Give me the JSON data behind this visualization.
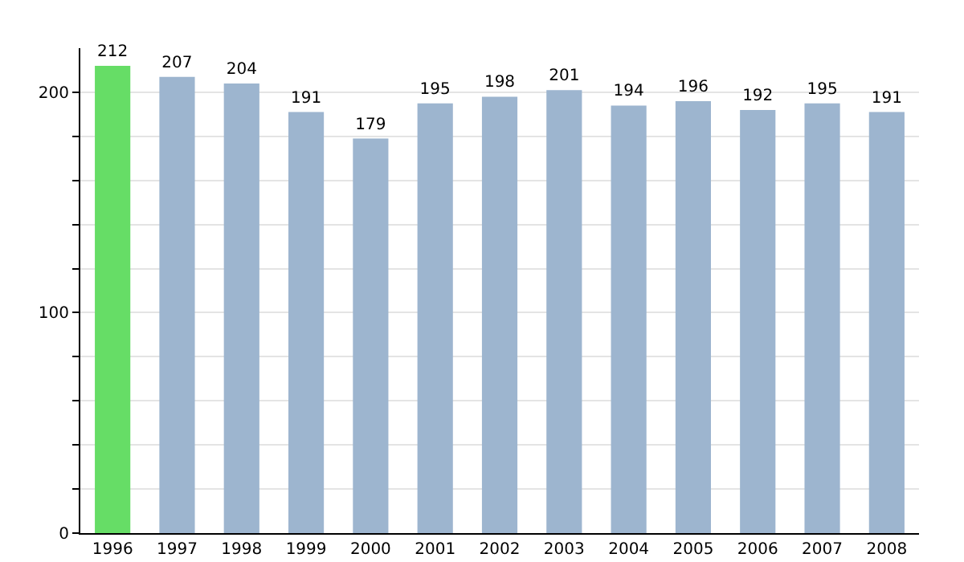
{
  "chart_data": {
    "type": "bar",
    "categories": [
      "1996",
      "1997",
      "1998",
      "1999",
      "2000",
      "2001",
      "2002",
      "2003",
      "2004",
      "2005",
      "2006",
      "2007",
      "2008"
    ],
    "values": [
      212,
      207,
      204,
      191,
      179,
      195,
      198,
      201,
      194,
      196,
      192,
      195,
      191
    ],
    "colors": [
      "#66dd66",
      "#9db5cf",
      "#9db5cf",
      "#9db5cf",
      "#9db5cf",
      "#9db5cf",
      "#9db5cf",
      "#9db5cf",
      "#9db5cf",
      "#9db5cf",
      "#9db5cf",
      "#9db5cf",
      "#9db5cf"
    ],
    "ylim": [
      0,
      220
    ],
    "yticks": [
      0,
      {
        "value": 20,
        "label": null
      },
      {
        "value": 40,
        "label": null
      },
      {
        "value": 60,
        "label": null
      },
      {
        "value": 80,
        "label": null
      },
      100,
      {
        "value": 120,
        "label": null
      },
      {
        "value": 140,
        "label": null
      },
      {
        "value": 160,
        "label": null
      },
      {
        "value": 180,
        "label": null
      },
      200
    ],
    "grid": "y",
    "data_labels": true,
    "legend": false
  }
}
